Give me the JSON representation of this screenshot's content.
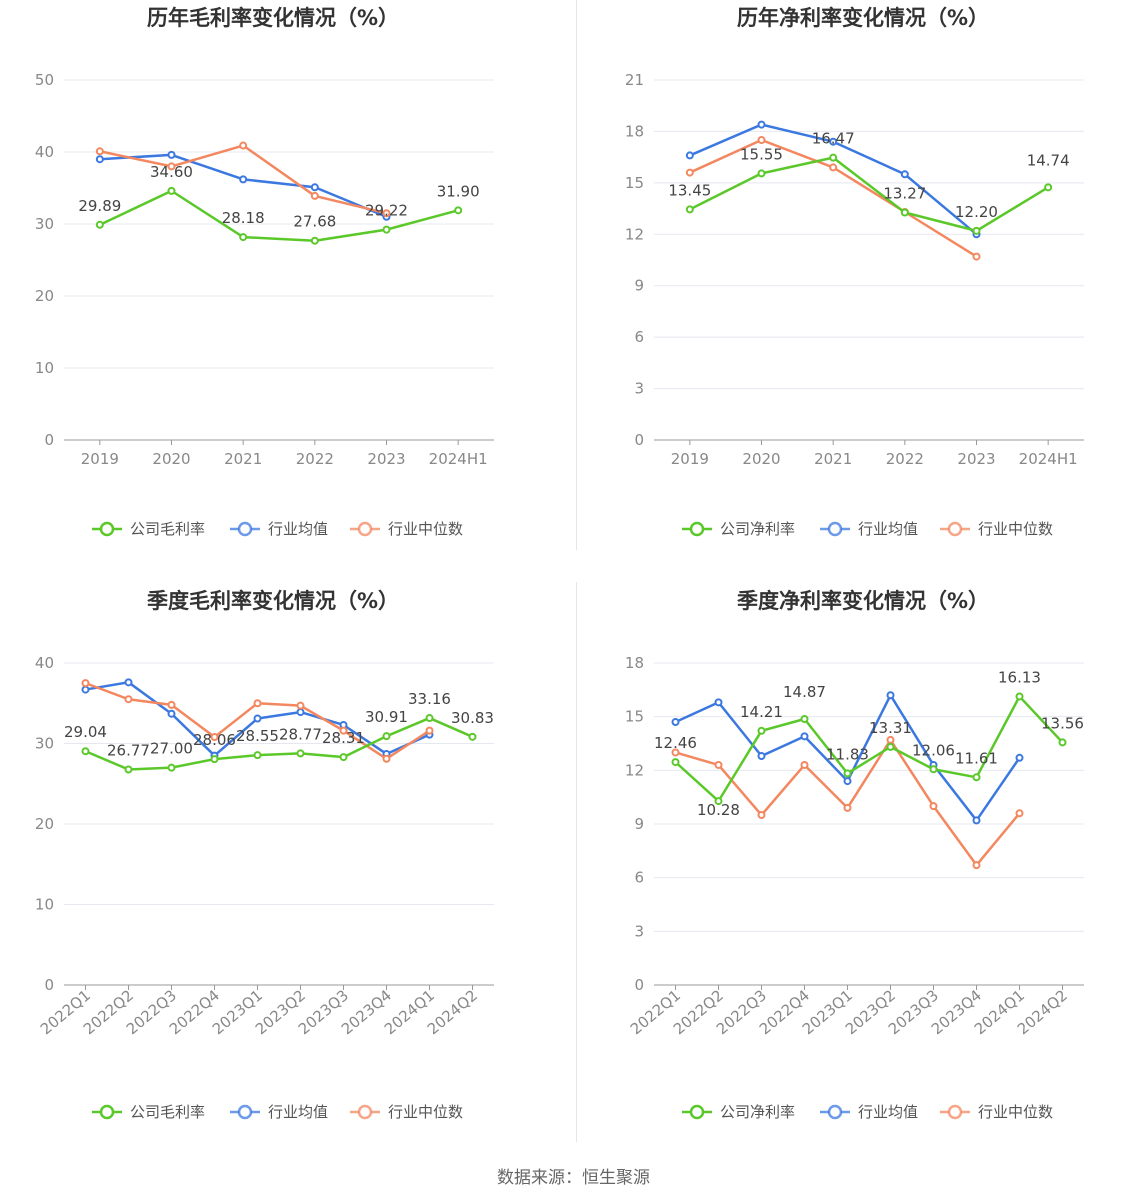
{
  "colors": {
    "company": "#5bc82a",
    "avg": "#3b78e0",
    "median": "#f3875f"
  },
  "source": "数据来源：恒生聚源",
  "chart_data": [
    {
      "id": "annual-gross",
      "type": "line",
      "title": "历年毛利率变化情况（%）",
      "categories": [
        "2019",
        "2020",
        "2021",
        "2022",
        "2023",
        "2024H1"
      ],
      "ylim": [
        0,
        50
      ],
      "yticks": [
        "0",
        "10",
        "20",
        "30",
        "40",
        "50"
      ],
      "grid": true,
      "legend_position": "bottom",
      "series": [
        {
          "name": "公司毛利率",
          "key": "company",
          "values": [
            29.89,
            34.6,
            28.18,
            27.68,
            29.22,
            31.9
          ],
          "labels": [
            "29.89",
            "34.60",
            "28.18",
            "27.68",
            "29.22",
            "31.90"
          ]
        },
        {
          "name": "行业均值",
          "key": "avg",
          "values": [
            39.0,
            39.6,
            36.2,
            35.1,
            31.0,
            null
          ]
        },
        {
          "name": "行业中位数",
          "key": "median",
          "values": [
            40.1,
            38.0,
            40.9,
            33.9,
            31.5,
            null
          ]
        }
      ]
    },
    {
      "id": "annual-net",
      "type": "line",
      "title": "历年净利率变化情况（%）",
      "categories": [
        "2019",
        "2020",
        "2021",
        "2022",
        "2023",
        "2024H1"
      ],
      "ylim": [
        0,
        21
      ],
      "yticks": [
        "0",
        "3",
        "6",
        "9",
        "12",
        "15",
        "18",
        "21"
      ],
      "grid": true,
      "legend_position": "bottom",
      "series": [
        {
          "name": "公司净利率",
          "key": "company",
          "values": [
            13.45,
            15.55,
            16.47,
            13.27,
            12.2,
            14.74
          ],
          "labels": [
            "13.45",
            "15.55",
            "16.47",
            "13.27",
            "12.20",
            "14.74"
          ]
        },
        {
          "name": "行业均值",
          "key": "avg",
          "values": [
            16.6,
            18.4,
            17.4,
            15.5,
            12.0,
            null
          ]
        },
        {
          "name": "行业中位数",
          "key": "median",
          "values": [
            15.6,
            17.5,
            15.9,
            13.3,
            10.7,
            null
          ]
        }
      ]
    },
    {
      "id": "quarterly-gross",
      "type": "line",
      "title": "季度毛利率变化情况（%）",
      "categories": [
        "2022Q1",
        "2022Q2",
        "2022Q3",
        "2022Q4",
        "2023Q1",
        "2023Q2",
        "2023Q3",
        "2023Q4",
        "2024Q1",
        "2024Q2"
      ],
      "ylim": [
        0,
        40
      ],
      "yticks": [
        "0",
        "10",
        "20",
        "30",
        "40"
      ],
      "grid": true,
      "legend_position": "bottom",
      "series": [
        {
          "name": "公司毛利率",
          "key": "company",
          "values": [
            29.04,
            26.77,
            27.0,
            28.06,
            28.55,
            28.77,
            28.31,
            30.91,
            33.16,
            30.83
          ],
          "labels": [
            "29.04",
            "26.77",
            "27.00",
            "28.06",
            "28.55",
            "28.77",
            "28.31",
            "30.91",
            "33.16",
            "30.83"
          ]
        },
        {
          "name": "行业均值",
          "key": "avg",
          "values": [
            36.7,
            37.6,
            33.7,
            28.5,
            33.1,
            33.9,
            32.3,
            28.7,
            31.1,
            null
          ]
        },
        {
          "name": "行业中位数",
          "key": "median",
          "values": [
            37.5,
            35.5,
            34.8,
            30.8,
            35.0,
            34.7,
            31.6,
            28.1,
            31.6,
            null
          ]
        }
      ]
    },
    {
      "id": "quarterly-net",
      "type": "line",
      "title": "季度净利率变化情况（%）",
      "categories": [
        "2022Q1",
        "2022Q2",
        "2022Q3",
        "2022Q4",
        "2023Q1",
        "2023Q2",
        "2023Q3",
        "2023Q4",
        "2024Q1",
        "2024Q2"
      ],
      "ylim": [
        0,
        18
      ],
      "yticks": [
        "0",
        "3",
        "6",
        "9",
        "12",
        "15",
        "18"
      ],
      "grid": true,
      "legend_position": "bottom",
      "series": [
        {
          "name": "公司净利率",
          "key": "company",
          "values": [
            12.46,
            10.28,
            14.21,
            14.87,
            11.83,
            13.31,
            12.06,
            11.61,
            16.13,
            13.56
          ],
          "labels": [
            "12.46",
            "10.28",
            "14.21",
            "14.87",
            "11.83",
            "13.31",
            "12.06",
            "11.61",
            "16.13",
            "13.56"
          ]
        },
        {
          "name": "行业均值",
          "key": "avg",
          "values": [
            14.7,
            15.8,
            12.8,
            13.9,
            11.4,
            16.2,
            12.3,
            9.2,
            12.7,
            null
          ]
        },
        {
          "name": "行业中位数",
          "key": "median",
          "values": [
            13.0,
            12.3,
            9.5,
            12.3,
            9.9,
            13.7,
            10.0,
            6.7,
            9.6,
            null
          ]
        }
      ]
    }
  ]
}
